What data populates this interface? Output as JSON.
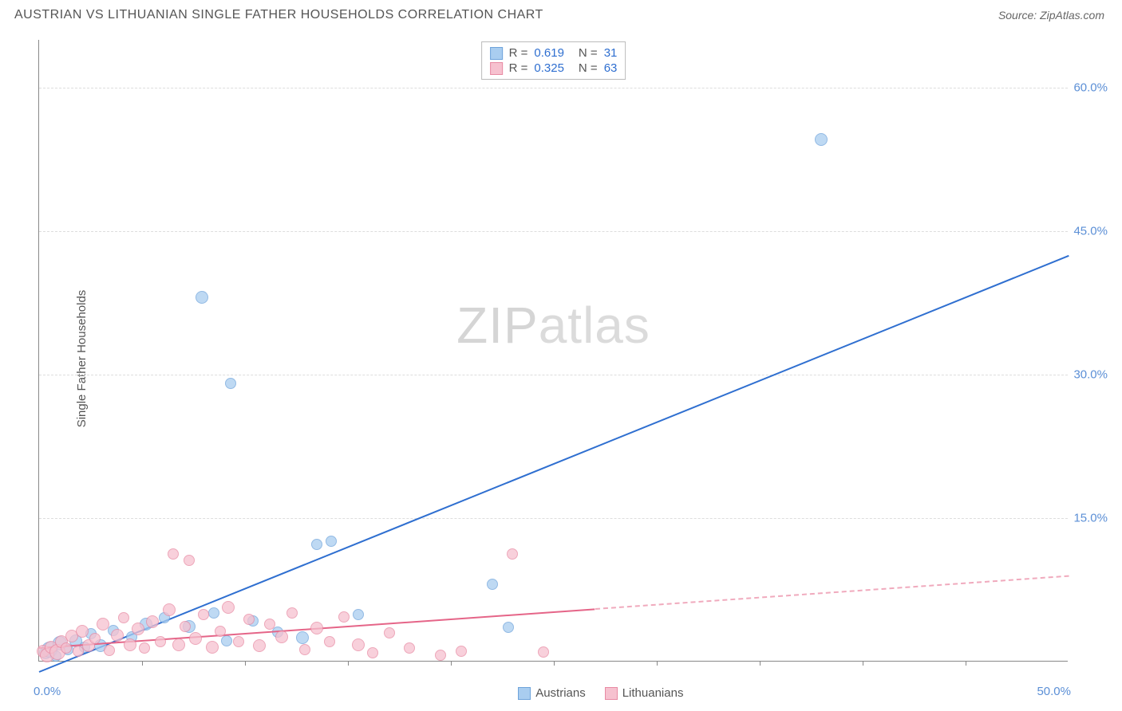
{
  "header": {
    "title": "AUSTRIAN VS LITHUANIAN SINGLE FATHER HOUSEHOLDS CORRELATION CHART",
    "source": "Source: ZipAtlas.com"
  },
  "watermark": {
    "zip": "ZIP",
    "atlas": "atlas"
  },
  "chart": {
    "type": "scatter",
    "y_axis_title": "Single Father Households",
    "xlim": [
      0,
      50
    ],
    "ylim": [
      0,
      65
    ],
    "x_labels": {
      "min": "0.0%",
      "max": "50.0%"
    },
    "y_ticks": [
      {
        "value": 15,
        "label": "15.0%"
      },
      {
        "value": 30,
        "label": "30.0%"
      },
      {
        "value": 45,
        "label": "45.0%"
      },
      {
        "value": 60,
        "label": "60.0%"
      }
    ],
    "x_tick_step": 5,
    "grid_color": "#dddddd",
    "axis_label_color": "#5b8fd6",
    "background_color": "#ffffff",
    "series": [
      {
        "name": "Austrians",
        "fill": "#a9cdf0",
        "stroke": "#6ea3db",
        "line_color": "#2f6fd0",
        "R": "0.619",
        "N": "31",
        "trend": {
          "x1": 0,
          "y1": -1,
          "x2": 50,
          "y2": 42.5,
          "solid_until_x": 50
        },
        "points": [
          {
            "x": 0.3,
            "y": 0.8,
            "r": 8
          },
          {
            "x": 0.5,
            "y": 1.2,
            "r": 10
          },
          {
            "x": 0.8,
            "y": 0.5,
            "r": 7
          },
          {
            "x": 1.0,
            "y": 1.8,
            "r": 9
          },
          {
            "x": 1.4,
            "y": 1.2,
            "r": 7
          },
          {
            "x": 1.8,
            "y": 2.1,
            "r": 8
          },
          {
            "x": 2.2,
            "y": 1.4,
            "r": 7
          },
          {
            "x": 2.5,
            "y": 2.8,
            "r": 7
          },
          {
            "x": 3.0,
            "y": 1.6,
            "r": 8
          },
          {
            "x": 3.6,
            "y": 3.2,
            "r": 7
          },
          {
            "x": 4.5,
            "y": 2.5,
            "r": 7
          },
          {
            "x": 5.2,
            "y": 3.8,
            "r": 8
          },
          {
            "x": 6.1,
            "y": 4.5,
            "r": 7
          },
          {
            "x": 7.3,
            "y": 3.6,
            "r": 8
          },
          {
            "x": 7.9,
            "y": 38.0,
            "r": 8
          },
          {
            "x": 8.5,
            "y": 5.0,
            "r": 7
          },
          {
            "x": 9.1,
            "y": 2.1,
            "r": 7
          },
          {
            "x": 9.3,
            "y": 29.0,
            "r": 7
          },
          {
            "x": 10.4,
            "y": 4.2,
            "r": 7
          },
          {
            "x": 11.6,
            "y": 3.0,
            "r": 7
          },
          {
            "x": 12.8,
            "y": 2.4,
            "r": 8
          },
          {
            "x": 13.5,
            "y": 12.2,
            "r": 7
          },
          {
            "x": 14.2,
            "y": 12.5,
            "r": 7
          },
          {
            "x": 15.5,
            "y": 4.8,
            "r": 7
          },
          {
            "x": 22.0,
            "y": 8.0,
            "r": 7
          },
          {
            "x": 22.8,
            "y": 3.5,
            "r": 7
          },
          {
            "x": 38.0,
            "y": 54.5,
            "r": 8
          }
        ]
      },
      {
        "name": "Lithuanians",
        "fill": "#f6c1cf",
        "stroke": "#e88aa3",
        "line_color": "#e56588",
        "R": "0.325",
        "N": "63",
        "trend": {
          "x1": 0,
          "y1": 1.5,
          "x2": 50,
          "y2": 9.0,
          "solid_until_x": 27
        },
        "points": [
          {
            "x": 0.2,
            "y": 1.0,
            "r": 8
          },
          {
            "x": 0.4,
            "y": 0.6,
            "r": 9
          },
          {
            "x": 0.6,
            "y": 1.4,
            "r": 8
          },
          {
            "x": 0.9,
            "y": 0.9,
            "r": 10
          },
          {
            "x": 1.1,
            "y": 2.0,
            "r": 8
          },
          {
            "x": 1.3,
            "y": 1.3,
            "r": 7
          },
          {
            "x": 1.6,
            "y": 2.6,
            "r": 8
          },
          {
            "x": 1.9,
            "y": 1.0,
            "r": 7
          },
          {
            "x": 2.1,
            "y": 3.1,
            "r": 8
          },
          {
            "x": 2.4,
            "y": 1.6,
            "r": 8
          },
          {
            "x": 2.7,
            "y": 2.3,
            "r": 7
          },
          {
            "x": 3.1,
            "y": 3.8,
            "r": 8
          },
          {
            "x": 3.4,
            "y": 1.1,
            "r": 7
          },
          {
            "x": 3.8,
            "y": 2.7,
            "r": 8
          },
          {
            "x": 4.1,
            "y": 4.5,
            "r": 7
          },
          {
            "x": 4.4,
            "y": 1.7,
            "r": 8
          },
          {
            "x": 4.8,
            "y": 3.3,
            "r": 8
          },
          {
            "x": 5.1,
            "y": 1.3,
            "r": 7
          },
          {
            "x": 5.5,
            "y": 4.1,
            "r": 8
          },
          {
            "x": 5.9,
            "y": 2.0,
            "r": 7
          },
          {
            "x": 6.3,
            "y": 5.3,
            "r": 8
          },
          {
            "x": 6.5,
            "y": 11.2,
            "r": 7
          },
          {
            "x": 6.8,
            "y": 1.7,
            "r": 8
          },
          {
            "x": 7.1,
            "y": 3.6,
            "r": 7
          },
          {
            "x": 7.3,
            "y": 10.5,
            "r": 7
          },
          {
            "x": 7.6,
            "y": 2.3,
            "r": 8
          },
          {
            "x": 8.0,
            "y": 4.8,
            "r": 7
          },
          {
            "x": 8.4,
            "y": 1.4,
            "r": 8
          },
          {
            "x": 8.8,
            "y": 3.1,
            "r": 7
          },
          {
            "x": 9.2,
            "y": 5.6,
            "r": 8
          },
          {
            "x": 9.7,
            "y": 2.0,
            "r": 7
          },
          {
            "x": 10.2,
            "y": 4.3,
            "r": 7
          },
          {
            "x": 10.7,
            "y": 1.6,
            "r": 8
          },
          {
            "x": 11.2,
            "y": 3.8,
            "r": 7
          },
          {
            "x": 11.8,
            "y": 2.5,
            "r": 8
          },
          {
            "x": 12.3,
            "y": 5.0,
            "r": 7
          },
          {
            "x": 12.9,
            "y": 1.2,
            "r": 7
          },
          {
            "x": 13.5,
            "y": 3.4,
            "r": 8
          },
          {
            "x": 14.1,
            "y": 2.0,
            "r": 7
          },
          {
            "x": 14.8,
            "y": 4.6,
            "r": 7
          },
          {
            "x": 15.5,
            "y": 1.7,
            "r": 8
          },
          {
            "x": 16.2,
            "y": 0.8,
            "r": 7
          },
          {
            "x": 17.0,
            "y": 2.9,
            "r": 7
          },
          {
            "x": 18.0,
            "y": 1.3,
            "r": 7
          },
          {
            "x": 19.5,
            "y": 0.6,
            "r": 7
          },
          {
            "x": 20.5,
            "y": 1.0,
            "r": 7
          },
          {
            "x": 23.0,
            "y": 11.2,
            "r": 7
          },
          {
            "x": 24.5,
            "y": 0.9,
            "r": 7
          }
        ]
      }
    ]
  }
}
